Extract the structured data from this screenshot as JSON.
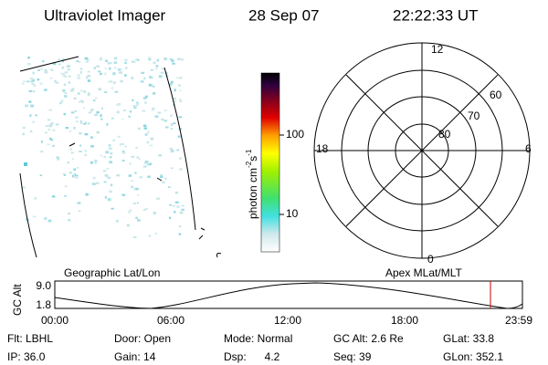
{
  "header": {
    "title": "Ultraviolet Imager",
    "date": "28 Sep 07",
    "time": "22:22:33 UT"
  },
  "colorbar": {
    "label": {
      "base": "photon cm",
      "sup1": "-2",
      "mid": "s",
      "sup2": "-1"
    },
    "ticks": [
      "100",
      "10"
    ]
  },
  "polar": {
    "mlt_labels": [
      "12",
      "18",
      "6",
      "0"
    ],
    "lat_labels": [
      "60",
      "70",
      "80"
    ]
  },
  "altitude_strip": {
    "left_label": "Geographic Lat/Lon",
    "right_label": "Apex MLat/MLT",
    "axis_label": "GC Alt",
    "yticks": [
      "9.0",
      "1.8"
    ],
    "xticks": [
      "00:00",
      "06:00",
      "12:00",
      "18:00",
      "23:59"
    ]
  },
  "info": {
    "rows": [
      [
        "Flt: LBHL",
        "Door: Open",
        "Mode: Normal",
        "GC Alt: 2.6 Re",
        "GLat: 33.8"
      ],
      [
        "IP: 36.0",
        "Gain: 14",
        "Dsp:      4.2",
        "Seq: 39",
        "GLon: 352.1"
      ]
    ]
  }
}
